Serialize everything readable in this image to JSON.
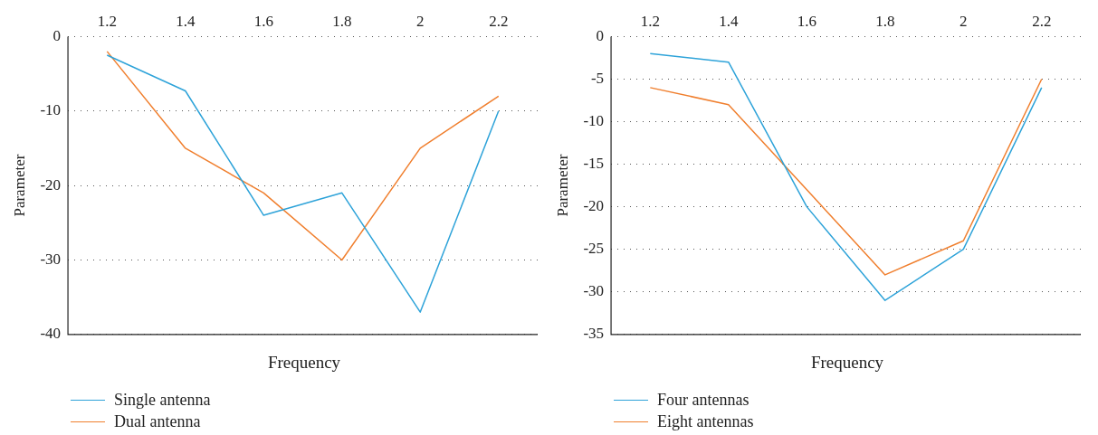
{
  "chart_data": [
    {
      "type": "line",
      "xlabel": "Frequency",
      "ylabel": "Parameter",
      "categories": [
        "1.2",
        "1.4",
        "1.6",
        "1.8",
        "2",
        "2.2"
      ],
      "ylim": [
        -40,
        0
      ],
      "yticks": [
        -40,
        -30,
        -20,
        -10,
        0
      ],
      "grid": "y",
      "legend": "bottom left",
      "marker": "none",
      "line_style": "solid",
      "series": [
        {
          "name": "Single antenna",
          "color": "#2ea3d9",
          "values": [
            -2.5,
            -7.3,
            -24,
            -21,
            -37,
            -10
          ]
        },
        {
          "name": "Dual antenna",
          "color": "#f07f2e",
          "values": [
            -2,
            -15,
            -21,
            -30,
            -15,
            -8
          ]
        }
      ]
    },
    {
      "type": "line",
      "xlabel": "Frequency",
      "ylabel": "Parameter",
      "categories": [
        "1.2",
        "1.4",
        "1.6",
        "1.8",
        "2",
        "2.2"
      ],
      "ylim": [
        -35,
        0
      ],
      "yticks": [
        -35,
        -30,
        -25,
        -20,
        -15,
        -10,
        -5,
        0
      ],
      "grid": "y",
      "legend": "bottom left",
      "marker": "none",
      "line_style": "solid",
      "series": [
        {
          "name": "Four antennas",
          "color": "#2ea3d9",
          "values": [
            -2,
            -3,
            -20,
            -31,
            -25,
            -6
          ]
        },
        {
          "name": "Eight antennas",
          "color": "#f07f2e",
          "values": [
            -6,
            -8,
            -18,
            -28,
            -24,
            -5
          ]
        }
      ]
    }
  ]
}
